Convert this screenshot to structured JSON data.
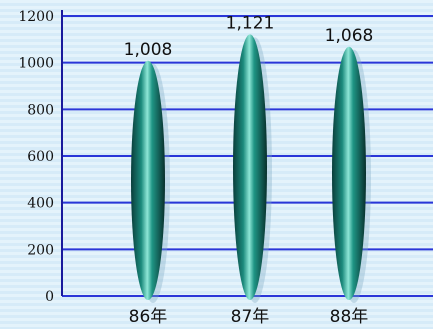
{
  "chart_data": {
    "type": "bar",
    "title": "",
    "xlabel": "",
    "ylabel": "",
    "categories": [
      "86年",
      "87年",
      "88年"
    ],
    "values": [
      1008,
      1121,
      1068
    ],
    "value_labels": [
      "1,008",
      "1,121",
      "1,068"
    ],
    "ylim": [
      0,
      1200
    ],
    "yticks": [
      0,
      200,
      400,
      600,
      800,
      1000,
      1200
    ],
    "ytick_labels": [
      "0",
      "200",
      "400",
      "600",
      "800",
      "1000",
      "1200"
    ],
    "grid": true,
    "legend": "none",
    "colors": {
      "background": "#e4f3fb",
      "background_stripe": "#d2e9f7",
      "gridline": "#2a36d8",
      "axis": "#1a1a9c",
      "bar_dark": "#0a3d3a",
      "bar_mid": "#1b8a7c",
      "bar_light": "#7fe0d0",
      "text": "#111111"
    }
  }
}
